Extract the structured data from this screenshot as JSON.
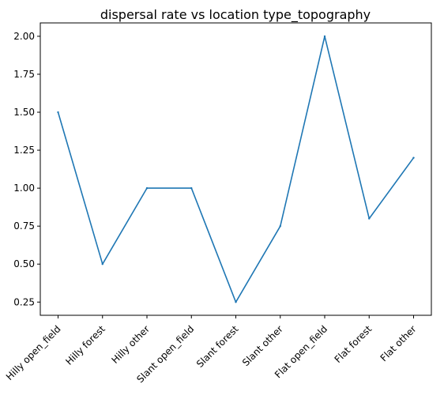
{
  "chart_data": {
    "type": "line",
    "title": "dispersal rate vs location type_topography",
    "xlabel": "",
    "ylabel": "",
    "categories": [
      "Hilly open_field",
      "Hilly forest",
      "Hilly other",
      "Slant open_field",
      "Slant forest",
      "Slant other",
      "Flat open_field",
      "Flat forest",
      "Flat other"
    ],
    "series": [
      {
        "values": [
          1.5,
          0.5,
          1.0,
          1.0,
          0.25,
          0.75,
          2.0,
          0.8,
          1.2
        ],
        "color": "#1f77b4"
      }
    ],
    "ylim": [
      0.163,
      2.088
    ],
    "yticks": [
      0.25,
      0.5,
      0.75,
      1.0,
      1.25,
      1.5,
      1.75,
      2.0
    ],
    "ytick_labels": [
      "0.25",
      "0.50",
      "0.75",
      "1.00",
      "1.25",
      "1.50",
      "1.75",
      "2.00"
    ],
    "grid": false,
    "legend": "none"
  }
}
